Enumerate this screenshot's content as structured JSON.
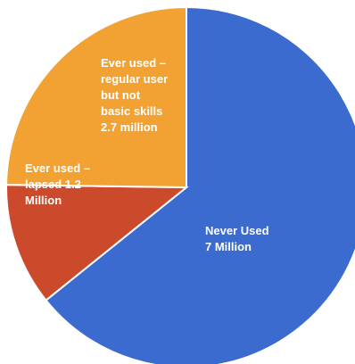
{
  "chart_data": {
    "type": "pie",
    "title": "",
    "slices": [
      {
        "name": "Never Used",
        "value": 7.0,
        "color": "#3c6bd0",
        "label_lines": [
          "Never Used",
          "7 Million"
        ]
      },
      {
        "name": "Ever used – lapsed",
        "value": 1.2,
        "color": "#cc4a2c",
        "label_lines": [
          "Ever used –",
          "lapsed 1.2",
          "Million"
        ]
      },
      {
        "name": "Ever used – regular user but not basic skills",
        "value": 2.7,
        "color": "#f2a233",
        "label_lines": [
          "Ever used –",
          "regular user",
          "but not",
          "basic skills",
          "2.7 million"
        ]
      }
    ],
    "legend": "none"
  }
}
